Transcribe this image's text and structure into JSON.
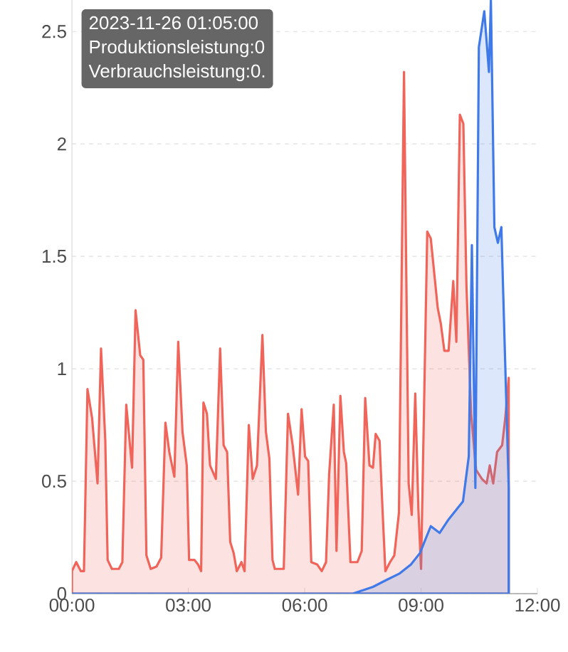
{
  "chart_data": {
    "type": "area",
    "xlim": [
      0,
      12
    ],
    "ylim": [
      0,
      2.64
    ],
    "xticks": [
      {
        "value": 0,
        "label": "00:00"
      },
      {
        "value": 3,
        "label": "03:00"
      },
      {
        "value": 6,
        "label": "06:00"
      },
      {
        "value": 9,
        "label": "09:00"
      },
      {
        "value": 12,
        "label": "12:00"
      }
    ],
    "yticks": [
      0,
      0.5,
      1,
      1.5,
      2,
      2.5
    ],
    "grid": "y",
    "annotations": [
      "2023-11-26 01:05:00",
      "Produktionsleistung:0",
      "Verbrauchsleistung:0."
    ],
    "series": [
      {
        "color": "#f0645a",
        "x": [
          0,
          0.11,
          0.23,
          0.31,
          0.4,
          0.52,
          0.66,
          0.75,
          0.86,
          0.92,
          1.03,
          1.21,
          1.3,
          1.4,
          1.55,
          1.64,
          1.76,
          1.84,
          1.92,
          2.03,
          2.18,
          2.3,
          2.41,
          2.51,
          2.64,
          2.74,
          2.85,
          2.96,
          3.02,
          3.16,
          3.25,
          3.33,
          3.39,
          3.48,
          3.56,
          3.71,
          3.82,
          3.91,
          4.0,
          4.08,
          4.17,
          4.25,
          4.37,
          4.45,
          4.56,
          4.66,
          4.77,
          4.91,
          5.0,
          5.09,
          5.17,
          5.23,
          5.46,
          5.57,
          5.69,
          5.83,
          5.92,
          6.01,
          6.09,
          6.17,
          6.32,
          6.44,
          6.55,
          6.63,
          6.75,
          6.82,
          6.92,
          7.01,
          7.07,
          7.18,
          7.36,
          7.47,
          7.56,
          7.67,
          7.76,
          7.83,
          7.93,
          8.01,
          8.08,
          8.2,
          8.31,
          8.43,
          8.56,
          8.68,
          8.76,
          8.85,
          8.93,
          9.0,
          9.16,
          9.25,
          9.43,
          9.51,
          9.6,
          9.71,
          9.83,
          9.91,
          10.0,
          10.09,
          10.17,
          10.29,
          10.42,
          10.57,
          10.69,
          10.77,
          10.86,
          10.96,
          11.09,
          11.17,
          11.26
        ],
        "values": [
          0.1,
          0.14,
          0.1,
          0.1,
          0.91,
          0.78,
          0.49,
          1.09,
          0.68,
          0.15,
          0.11,
          0.11,
          0.14,
          0.84,
          0.56,
          1.26,
          1.06,
          1.04,
          0.17,
          0.11,
          0.12,
          0.16,
          0.76,
          0.63,
          0.52,
          1.12,
          0.72,
          0.57,
          0.15,
          0.15,
          0.13,
          0.1,
          0.85,
          0.8,
          0.57,
          0.51,
          1.09,
          0.66,
          0.63,
          0.23,
          0.18,
          0.1,
          0.14,
          0.1,
          0.75,
          0.51,
          0.57,
          1.15,
          0.72,
          0.6,
          0.15,
          0.11,
          0.11,
          0.8,
          0.66,
          0.44,
          0.82,
          0.61,
          0.59,
          0.14,
          0.13,
          0.1,
          0.14,
          0.53,
          0.84,
          0.19,
          0.88,
          0.63,
          0.58,
          0.14,
          0.14,
          0.19,
          0.87,
          0.57,
          0.56,
          0.71,
          0.68,
          0.36,
          0.1,
          0.14,
          0.17,
          0.36,
          2.32,
          0.49,
          0.35,
          0.89,
          0.38,
          0.11,
          1.61,
          1.58,
          1.27,
          1.2,
          1.08,
          1.08,
          1.39,
          1.12,
          2.13,
          2.09,
          1.37,
          0.8,
          0.55,
          0.51,
          0.49,
          0.57,
          0.49,
          0.63,
          0.66,
          0.78,
          0.96
        ]
      },
      {
        "color": "#3f7ae8",
        "x": [
          0,
          7.24,
          7.76,
          8.1,
          8.45,
          8.74,
          8.97,
          9.25,
          9.48,
          9.71,
          9.94,
          10.08,
          10.23,
          10.31,
          10.4,
          10.49,
          10.63,
          10.75,
          10.8,
          10.89,
          10.98,
          11.07,
          11.26
        ],
        "values": [
          0,
          0,
          0.03,
          0.06,
          0.09,
          0.13,
          0.18,
          0.3,
          0.27,
          0.33,
          0.38,
          0.41,
          0.61,
          1.55,
          0.47,
          2.43,
          2.59,
          2.32,
          2.64,
          1.63,
          1.56,
          1.63,
          0.47
        ]
      }
    ]
  }
}
